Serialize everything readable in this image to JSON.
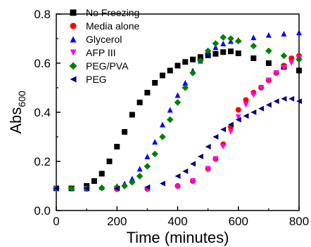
{
  "chart_data": {
    "type": "scatter",
    "title": "",
    "xlabel": "Time (minutes)",
    "ylabel_main": "Abs",
    "ylabel_sub": "600",
    "xlim": [
      0,
      800
    ],
    "ylim": [
      0,
      0.8
    ],
    "x_ticks": [
      0,
      200,
      400,
      600,
      800
    ],
    "x_tick_labels": [
      "0",
      "200",
      "400",
      "600",
      "800"
    ],
    "y_ticks": [
      0,
      0.2,
      0.4,
      0.6,
      0.8
    ],
    "y_tick_labels": [
      "0.0",
      "0.2",
      "0.4",
      "0.6",
      "0.8"
    ],
    "grid": false,
    "legend_position": "top-left",
    "series": [
      {
        "name": "No Freezing",
        "marker": "square",
        "color": "#000000",
        "x": [
          0,
          50,
          100,
          125,
          150,
          175,
          200,
          225,
          250,
          275,
          300,
          325,
          350,
          375,
          400,
          425,
          450,
          475,
          500,
          525,
          550,
          575,
          600,
          650,
          700,
          750,
          800
        ],
        "y": [
          0.09,
          0.09,
          0.1,
          0.12,
          0.15,
          0.2,
          0.26,
          0.32,
          0.39,
          0.44,
          0.48,
          0.52,
          0.55,
          0.57,
          0.59,
          0.605,
          0.615,
          0.625,
          0.632,
          0.638,
          0.645,
          0.648,
          0.64,
          0.62,
          0.6,
          0.585,
          0.57
        ]
      },
      {
        "name": "Media alone",
        "marker": "circle",
        "color": "#ff0000",
        "x": [
          0,
          100,
          200,
          300,
          400,
          450,
          500,
          525,
          550,
          575,
          600,
          625,
          650,
          675,
          700,
          725,
          750,
          775,
          800
        ],
        "y": [
          0.09,
          0.088,
          0.087,
          0.088,
          0.1,
          0.12,
          0.17,
          0.21,
          0.27,
          0.34,
          0.41,
          0.45,
          0.48,
          0.5,
          0.53,
          0.56,
          0.59,
          0.62,
          0.63
        ]
      },
      {
        "name": "Glycerol",
        "marker": "triangle-up",
        "color": "#0000ff",
        "x": [
          0,
          50,
          100,
          150,
          200,
          225,
          250,
          275,
          300,
          325,
          350,
          375,
          400,
          425,
          450,
          475,
          500,
          525,
          550,
          575,
          600,
          650,
          700,
          750,
          800
        ],
        "y": [
          0.09,
          0.09,
          0.09,
          0.095,
          0.1,
          0.11,
          0.13,
          0.17,
          0.22,
          0.28,
          0.35,
          0.41,
          0.47,
          0.52,
          0.57,
          0.61,
          0.645,
          0.665,
          0.68,
          0.69,
          0.695,
          0.705,
          0.715,
          0.72,
          0.725
        ]
      },
      {
        "name": "AFP III",
        "marker": "triangle-down",
        "color": "#ff00ff",
        "x": [
          0,
          100,
          200,
          300,
          400,
          450,
          500,
          525,
          550,
          575,
          600,
          625,
          650,
          675,
          700,
          725,
          750,
          775,
          800
        ],
        "y": [
          0.09,
          0.088,
          0.086,
          0.086,
          0.095,
          0.12,
          0.17,
          0.21,
          0.26,
          0.32,
          0.38,
          0.43,
          0.47,
          0.5,
          0.53,
          0.56,
          0.58,
          0.6,
          0.62
        ]
      },
      {
        "name": "PEG/PVA",
        "marker": "diamond",
        "color": "#008000",
        "x": [
          0,
          50,
          100,
          150,
          200,
          225,
          250,
          275,
          300,
          325,
          350,
          375,
          400,
          425,
          450,
          475,
          500,
          525,
          550,
          575,
          600,
          650,
          700,
          750,
          800
        ],
        "y": [
          0.09,
          0.09,
          0.09,
          0.092,
          0.095,
          0.1,
          0.115,
          0.14,
          0.18,
          0.23,
          0.3,
          0.37,
          0.44,
          0.5,
          0.56,
          0.61,
          0.65,
          0.68,
          0.705,
          0.7,
          0.69,
          0.67,
          0.65,
          0.63,
          0.615
        ]
      },
      {
        "name": "PEG",
        "marker": "triangle-left",
        "color": "#000080",
        "x": [
          0,
          100,
          200,
          300,
          350,
          400,
          425,
          450,
          475,
          500,
          525,
          550,
          575,
          600,
          625,
          650,
          675,
          700,
          725,
          750,
          775,
          800
        ],
        "y": [
          0.09,
          0.09,
          0.09,
          0.095,
          0.11,
          0.14,
          0.16,
          0.19,
          0.22,
          0.26,
          0.3,
          0.33,
          0.35,
          0.37,
          0.385,
          0.4,
          0.415,
          0.43,
          0.445,
          0.455,
          0.455,
          0.445
        ]
      }
    ]
  }
}
